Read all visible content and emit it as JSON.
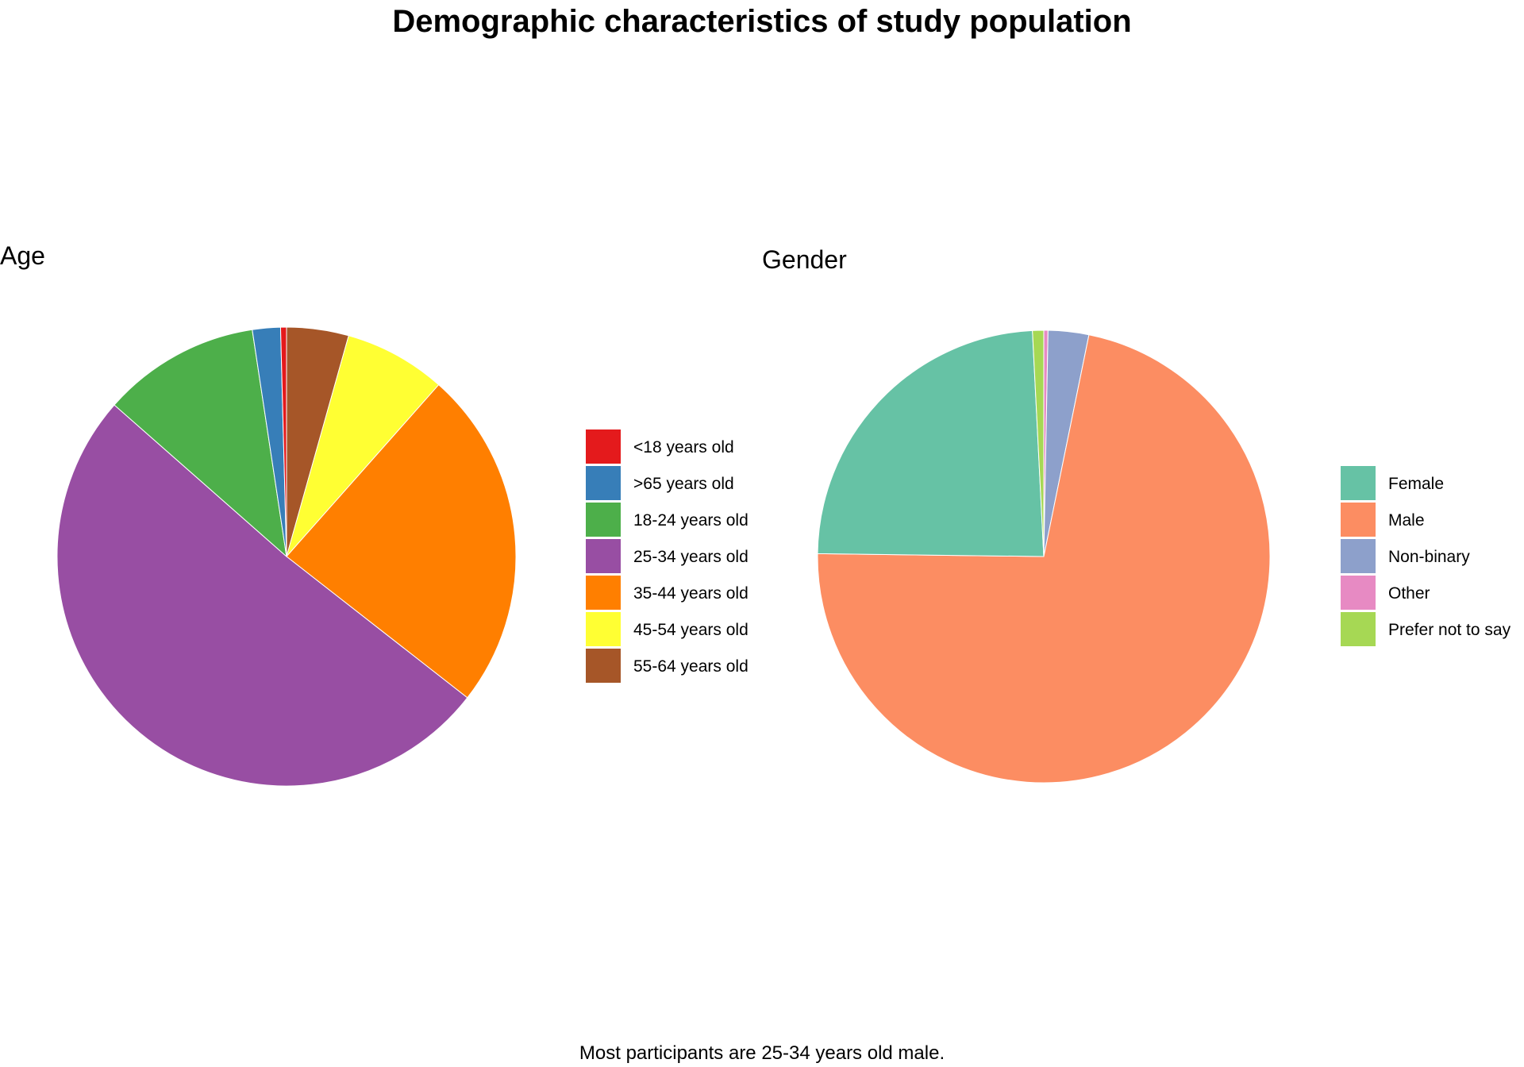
{
  "title": "Demographic characteristics of study population",
  "caption": "Most participants are 25-34 years old male.",
  "chart_data": [
    {
      "type": "pie",
      "title": "Age",
      "categories": [
        "<18 years old",
        ">65 years old",
        "18-24 years old",
        "25-34 years old",
        "35-44 years old",
        "45-54 years old",
        "55-64 years old"
      ],
      "values": [
        0.4,
        1.9,
        10.7,
        49.0,
        23.1,
        6.9,
        4.2
      ],
      "unit": "percent",
      "slice_order_clockwise_from_top": [
        "55-64 years old",
        "45-54 years old",
        "35-44 years old",
        "25-34 years old",
        "18-24 years old",
        ">65 years old",
        "<18 years old"
      ],
      "colors": [
        "#E41A1C",
        "#377EB8",
        "#4DAF4A",
        "#984EA3",
        "#FF7F00",
        "#FFFF33",
        "#A65628"
      ],
      "legend_position": "right"
    },
    {
      "type": "pie",
      "title": "Gender",
      "categories": [
        "Female",
        "Male",
        "Non-binary",
        "Other",
        "Prefer not to say"
      ],
      "values": [
        24.0,
        72.0,
        2.9,
        0.3,
        0.8
      ],
      "unit": "percent",
      "slice_order_clockwise_from_top": [
        "Other",
        "Non-binary",
        "Male",
        "Female",
        "Prefer not to say"
      ],
      "colors": [
        "#66C2A5",
        "#FC8D62",
        "#8DA0CB",
        "#E78AC3",
        "#A6D854"
      ],
      "legend_position": "right"
    }
  ]
}
